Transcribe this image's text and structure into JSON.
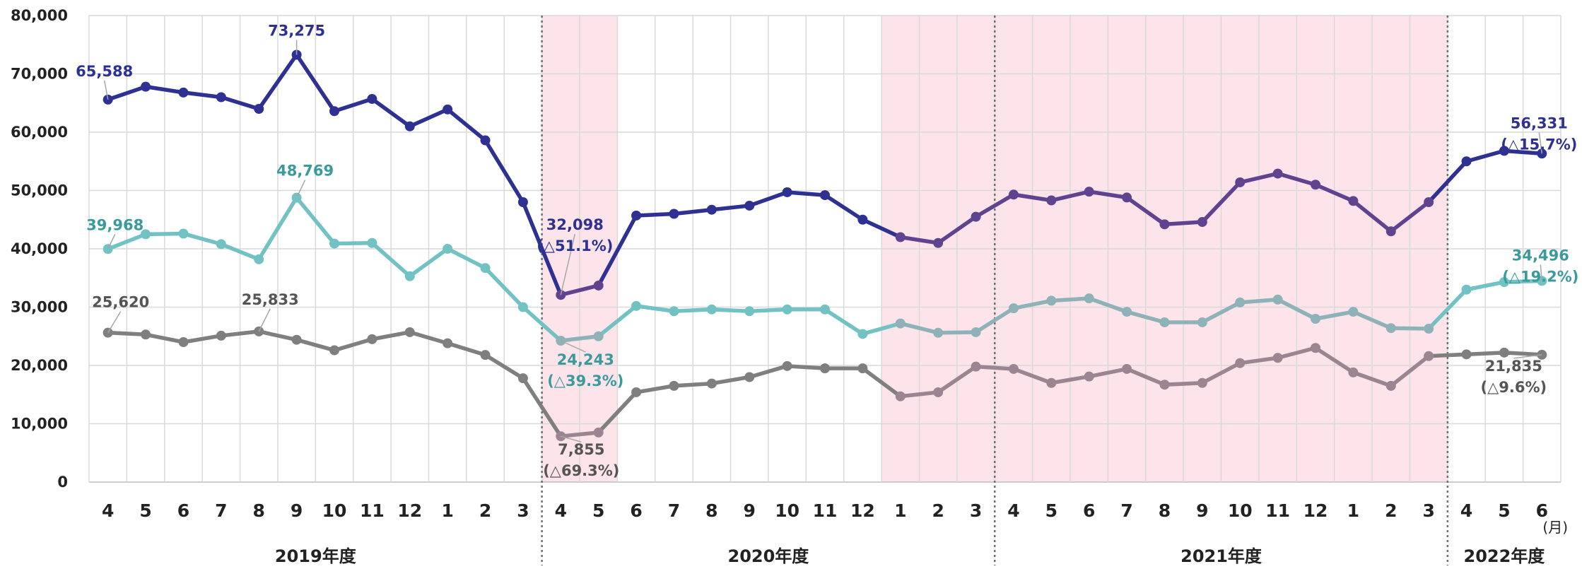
{
  "chart_data": {
    "type": "line",
    "ylim": [
      0,
      80000
    ],
    "y_ticks": [
      "0",
      "10,000",
      "20,000",
      "30,000",
      "40,000",
      "50,000",
      "60,000",
      "70,000",
      "80,000"
    ],
    "x_labels": [
      "4",
      "5",
      "6",
      "7",
      "8",
      "9",
      "10",
      "11",
      "12",
      "1",
      "2",
      "3",
      "4",
      "5",
      "6",
      "7",
      "8",
      "9",
      "10",
      "11",
      "12",
      "1",
      "2",
      "3",
      "4",
      "5",
      "6",
      "7",
      "8",
      "9",
      "10",
      "11",
      "12",
      "1",
      "2",
      "3",
      "4",
      "5",
      "6"
    ],
    "x_unit": "(月)",
    "fiscal_years": [
      {
        "label": "2019年度",
        "start": 0,
        "end": 11
      },
      {
        "label": "2020年度",
        "start": 12,
        "end": 23
      },
      {
        "label": "2021年度",
        "start": 24,
        "end": 35
      },
      {
        "label": "2022年度",
        "start": 36,
        "end": 38
      }
    ],
    "shaded_periods": [
      {
        "start": 12,
        "end": 13
      },
      {
        "start": 21,
        "end": 23
      },
      {
        "start": 24,
        "end": 32
      },
      {
        "start": 33,
        "end": 35
      }
    ],
    "grid": true,
    "legend": "none",
    "series": [
      {
        "color": "#2e3192",
        "shaded_color": "#60438f",
        "values": [
          65588,
          67800,
          66800,
          66000,
          64000,
          73275,
          63600,
          65700,
          61000,
          63900,
          58600,
          48000,
          32098,
          33700,
          45700,
          46000,
          46700,
          47400,
          49700,
          49200,
          45000,
          42000,
          41000,
          45500,
          49300,
          48300,
          49800,
          48800,
          44200,
          44600,
          51400,
          52900,
          51000,
          48200,
          43000,
          48000,
          55000,
          56800,
          56331
        ],
        "labels": [
          {
            "index": 0,
            "lines": [
              "65,588"
            ]
          },
          {
            "index": 5,
            "lines": [
              "73,275"
            ]
          },
          {
            "index": 12,
            "lines": [
              "32,098",
              "(△51.1%)"
            ]
          },
          {
            "index": 38,
            "lines": [
              "56,331",
              "(△15.7%)"
            ]
          }
        ]
      },
      {
        "color": "#72c2c4",
        "label_color": "#3a9a9c",
        "shaded_color": "#8fb2b8",
        "values": [
          39968,
          42500,
          42600,
          40800,
          38200,
          48769,
          40900,
          41000,
          35300,
          40000,
          36700,
          30000,
          24243,
          25000,
          30200,
          29300,
          29600,
          29300,
          29600,
          29600,
          25400,
          27200,
          25600,
          25700,
          29800,
          31100,
          31500,
          29200,
          27400,
          27400,
          30800,
          31300,
          28000,
          29200,
          26400,
          26300,
          33000,
          34300,
          34496
        ],
        "labels": [
          {
            "index": 0,
            "lines": [
              "39,968"
            ]
          },
          {
            "index": 5,
            "lines": [
              "48,769"
            ]
          },
          {
            "index": 12,
            "lines": [
              "24,243",
              "(△39.3%)"
            ]
          },
          {
            "index": 38,
            "lines": [
              "34,496",
              "(△19.2%)"
            ]
          }
        ]
      },
      {
        "color": "#7f7f7f",
        "label_color": "#555555",
        "shaded_color": "#9a8590",
        "values": [
          25620,
          25300,
          24000,
          25100,
          25833,
          24400,
          22600,
          24500,
          25700,
          23800,
          21800,
          17800,
          7855,
          8500,
          15400,
          16500,
          16900,
          18000,
          19900,
          19500,
          19500,
          14700,
          15400,
          19800,
          19400,
          17000,
          18100,
          19400,
          16700,
          17000,
          20400,
          21300,
          23000,
          18800,
          16500,
          21600,
          21900,
          22200,
          21835
        ],
        "labels": [
          {
            "index": 0,
            "lines": [
              "25,620"
            ]
          },
          {
            "index": 4,
            "lines": [
              "25,833"
            ]
          },
          {
            "index": 12,
            "lines": [
              "7,855",
              "(△69.3%)"
            ]
          },
          {
            "index": 38,
            "lines": [
              "21,835",
              "(△9.6%)"
            ]
          }
        ]
      }
    ]
  }
}
